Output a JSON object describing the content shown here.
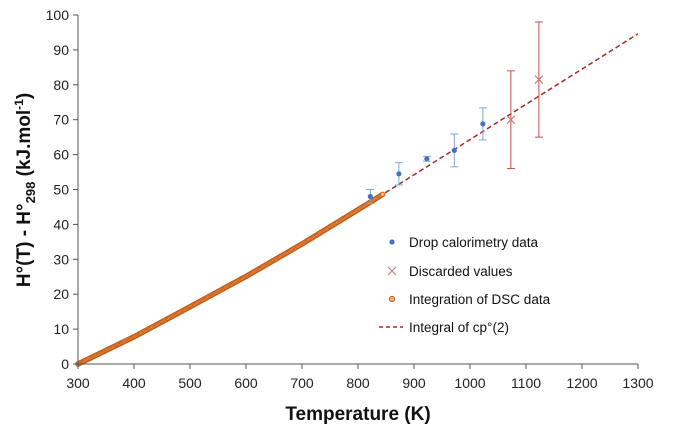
{
  "chart_data": {
    "type": "scatter",
    "title": "",
    "xlabel": "Temperature (K)",
    "ylabel": {
      "main": "H°(T) - H°",
      "sub": "298",
      "unit_pre": " (kJ.mol",
      "unit_sup": "-1",
      "unit_post": ")"
    },
    "xlim": [
      300,
      1300
    ],
    "ylim": [
      0,
      100
    ],
    "x_ticks": [
      300,
      400,
      500,
      600,
      700,
      800,
      900,
      1000,
      1100,
      1200,
      1300
    ],
    "y_ticks": [
      0,
      10,
      20,
      30,
      40,
      50,
      60,
      70,
      80,
      90,
      100
    ],
    "grid": false,
    "legend_position": "center-right",
    "series": [
      {
        "name": "Drop calorimetry data",
        "kind": "points",
        "marker": "dot",
        "color": "#4472C4",
        "error_color": "#7FA7D9",
        "points": [
          {
            "x": 822,
            "y": 48.0,
            "err": 2.0
          },
          {
            "x": 873,
            "y": 54.5,
            "err": 3.2
          },
          {
            "x": 923,
            "y": 58.8,
            "err": 0.7
          },
          {
            "x": 972,
            "y": 61.2,
            "err": 4.7
          },
          {
            "x": 1023,
            "y": 68.8,
            "err": 4.6
          }
        ]
      },
      {
        "name": "Discarded values",
        "kind": "points",
        "marker": "x",
        "color": "#C9787A",
        "error_color": "#C0504D",
        "points": [
          {
            "x": 1073,
            "y": 70.0,
            "err": 14.0
          },
          {
            "x": 1123,
            "y": 81.5,
            "err": 16.5
          }
        ]
      },
      {
        "name": "Integration of DSC data",
        "kind": "dense",
        "marker": "circle",
        "color": "#C55A11",
        "x_start": 300,
        "x_end": 845,
        "x_step": 2
      },
      {
        "name": "Integral of cp°(2)",
        "kind": "curve",
        "line": "dashed",
        "color": "#A52A2A",
        "x": [
          300,
          400,
          500,
          600,
          700,
          800,
          900,
          1000,
          1100,
          1200,
          1300
        ],
        "y": [
          0,
          7.8,
          16.4,
          25.1,
          34.4,
          44.2,
          54.2,
          64.3,
          74.4,
          84.5,
          94.6
        ]
      }
    ]
  }
}
